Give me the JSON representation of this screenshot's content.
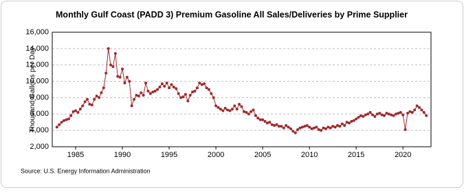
{
  "chart_data": {
    "type": "line",
    "title": "Monthly Gulf Coast (PADD 3) Premium Gasoline All Sales/Deliveries by Prime Supplier",
    "y_label": "Thousand Gallons per Day",
    "source": "Source: U.S. Energy Information Administration",
    "x": [
      1983,
      1983.25,
      1983.5,
      1983.75,
      1984,
      1984.25,
      1984.5,
      1984.75,
      1985,
      1985.25,
      1985.5,
      1985.75,
      1986,
      1986.25,
      1986.5,
      1986.75,
      1987,
      1987.25,
      1987.5,
      1987.75,
      1988,
      1988.25,
      1988.5,
      1988.75,
      1989,
      1989.25,
      1989.5,
      1989.75,
      1990,
      1990.25,
      1990.5,
      1990.75,
      1991,
      1991.25,
      1991.5,
      1991.75,
      1992,
      1992.25,
      1992.5,
      1992.75,
      1993,
      1993.25,
      1993.5,
      1993.75,
      1994,
      1994.25,
      1994.5,
      1994.75,
      1995,
      1995.25,
      1995.5,
      1995.75,
      1996,
      1996.25,
      1996.5,
      1996.75,
      1997,
      1997.25,
      1997.5,
      1997.75,
      1998,
      1998.25,
      1998.5,
      1998.75,
      1999,
      1999.25,
      1999.5,
      1999.75,
      2000,
      2000.25,
      2000.5,
      2000.75,
      2001,
      2001.25,
      2001.5,
      2001.75,
      2002,
      2002.25,
      2002.5,
      2002.75,
      2003,
      2003.25,
      2003.5,
      2003.75,
      2004,
      2004.25,
      2004.5,
      2004.75,
      2005,
      2005.25,
      2005.5,
      2005.75,
      2006,
      2006.25,
      2006.5,
      2006.75,
      2007,
      2007.25,
      2007.5,
      2007.75,
      2008,
      2008.25,
      2008.5,
      2008.75,
      2009,
      2009.25,
      2009.5,
      2009.75,
      2010,
      2010.25,
      2010.5,
      2010.75,
      2011,
      2011.25,
      2011.5,
      2011.75,
      2012,
      2012.25,
      2012.5,
      2012.75,
      2013,
      2013.25,
      2013.5,
      2013.75,
      2014,
      2014.25,
      2014.5,
      2014.75,
      2015,
      2015.25,
      2015.5,
      2015.75,
      2016,
      2016.25,
      2016.5,
      2016.75,
      2017,
      2017.25,
      2017.5,
      2017.75,
      2018,
      2018.25,
      2018.5,
      2018.75,
      2019,
      2019.25,
      2019.5,
      2019.75,
      2020,
      2020.25,
      2020.5,
      2020.75,
      2021,
      2021.25,
      2021.5,
      2021.75,
      2022,
      2022.25,
      2022.5
    ],
    "series": [
      {
        "name": "Premium Gasoline",
        "color": "#a0282a",
        "values": [
          4400,
          4700,
          5000,
          5200,
          5300,
          5400,
          5800,
          6300,
          6400,
          6200,
          6600,
          7000,
          7500,
          7800,
          7200,
          7100,
          7800,
          8200,
          8000,
          8600,
          9200,
          11000,
          14000,
          12000,
          11800,
          13400,
          10600,
          10500,
          11500,
          9800,
          10500,
          10000,
          7000,
          7800,
          8300,
          8200,
          8600,
          8300,
          9800,
          8800,
          8500,
          8700,
          8800,
          9000,
          9300,
          9700,
          9400,
          9800,
          9200,
          9600,
          9300,
          9100,
          8500,
          8000,
          8100,
          8400,
          7600,
          8300,
          8700,
          8800,
          9200,
          9800,
          9600,
          9700,
          9200,
          9000,
          8500,
          8000,
          7000,
          6800,
          6600,
          6400,
          6700,
          6500,
          6400,
          6600,
          7000,
          6600,
          7200,
          6900,
          6300,
          6200,
          6000,
          6300,
          6500,
          5800,
          5500,
          5300,
          5300,
          5100,
          4900,
          5000,
          4700,
          4600,
          4700,
          4500,
          4500,
          4300,
          4600,
          4400,
          4200,
          3900,
          3700,
          4100,
          4300,
          4400,
          4500,
          4600,
          4400,
          4200,
          4300,
          4400,
          4100,
          4000,
          4300,
          4200,
          4400,
          4300,
          4500,
          4400,
          4600,
          4500,
          4800,
          4600,
          5000,
          4900,
          5100,
          5200,
          5400,
          5600,
          5800,
          5700,
          5900,
          6000,
          6200,
          5900,
          5700,
          6000,
          6100,
          5900,
          5800,
          6100,
          6000,
          5900,
          5800,
          6000,
          6100,
          6200,
          5900,
          4100,
          6100,
          6300,
          6200,
          6500,
          7000,
          6800,
          6500,
          6200,
          5800
        ]
      }
    ],
    "xlim": [
      1982.5,
      2023
    ],
    "xticks": [
      1985,
      1990,
      1995,
      2000,
      2005,
      2010,
      2015,
      2020
    ],
    "ylim": [
      2000,
      16000
    ],
    "yticks": [
      {
        "value": 2000,
        "label": "2,000"
      },
      {
        "value": 4000,
        "label": "4,000"
      },
      {
        "value": 6000,
        "label": "6,000"
      },
      {
        "value": 8000,
        "label": "8,000"
      },
      {
        "value": 10000,
        "label": "10,000"
      },
      {
        "value": 12000,
        "label": "12,000"
      },
      {
        "value": 14000,
        "label": "14,000"
      },
      {
        "value": 16000,
        "label": "16,000"
      }
    ],
    "grid": true
  }
}
